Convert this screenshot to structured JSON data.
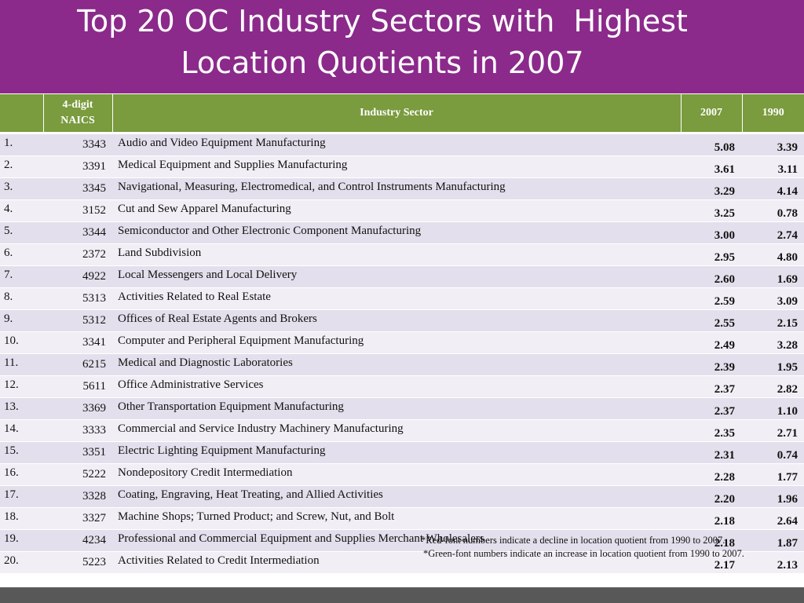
{
  "title": {
    "line1": "Top 20 OC Industry Sectors with  Highest",
    "line2": "Location Quotients in 2007"
  },
  "table": {
    "headers": {
      "naics_line1": "4-digit",
      "naics_line2": "NAICS",
      "sector": "Industry Sector",
      "y2007": "2007",
      "y1990": "1990"
    },
    "colors": {
      "increase": "#6a9a2a",
      "decline": "#c00000",
      "header": "#7a9b3e",
      "title_band": "#8b2a8b"
    },
    "rows": [
      {
        "rank": "1.",
        "naics": "3343",
        "sector": "Audio and Video Equipment Manufacturing",
        "v2007": "5.08",
        "v1990": "3.39",
        "trend": "up"
      },
      {
        "rank": "2.",
        "naics": "3391",
        "sector": "Medical Equipment and Supplies Manufacturing",
        "v2007": "3.61",
        "v1990": "3.11",
        "trend": "up"
      },
      {
        "rank": "3.",
        "naics": "3345",
        "sector": "Navigational, Measuring, Electromedical, and Control Instruments Manufacturing",
        "v2007": "3.29",
        "v1990": "4.14",
        "trend": "down"
      },
      {
        "rank": "4.",
        "naics": "3152",
        "sector": "Cut and Sew Apparel Manufacturing",
        "v2007": "3.25",
        "v1990": "0.78",
        "trend": "up"
      },
      {
        "rank": "5.",
        "naics": "3344",
        "sector": "Semiconductor and Other Electronic Component Manufacturing",
        "v2007": "3.00",
        "v1990": "2.74",
        "trend": "up"
      },
      {
        "rank": "6.",
        "naics": "2372",
        "sector": "Land Subdivision",
        "v2007": "2.95",
        "v1990": "4.80",
        "trend": "down"
      },
      {
        "rank": "7.",
        "naics": "4922",
        "sector": "Local Messengers and Local Delivery",
        "v2007": "2.60",
        "v1990": "1.69",
        "trend": "up"
      },
      {
        "rank": "8.",
        "naics": "5313",
        "sector": "Activities Related to Real Estate",
        "v2007": "2.59",
        "v1990": "3.09",
        "trend": "down"
      },
      {
        "rank": "9.",
        "naics": "5312",
        "sector": "Offices of Real Estate Agents and Brokers",
        "v2007": "2.55",
        "v1990": "2.15",
        "trend": "up"
      },
      {
        "rank": "10.",
        "naics": "3341",
        "sector": "Computer and Peripheral Equipment Manufacturing",
        "v2007": "2.49",
        "v1990": "3.28",
        "trend": "down"
      },
      {
        "rank": "11.",
        "naics": "6215",
        "sector": "Medical and Diagnostic Laboratories",
        "v2007": "2.39",
        "v1990": "1.95",
        "trend": "up"
      },
      {
        "rank": "12.",
        "naics": "5611",
        "sector": "Office Administrative Services",
        "v2007": "2.37",
        "v1990": "2.82",
        "trend": "down"
      },
      {
        "rank": "13.",
        "naics": "3369",
        "sector": "Other Transportation Equipment Manufacturing",
        "v2007": "2.37",
        "v1990": "1.10",
        "trend": "up"
      },
      {
        "rank": "14.",
        "naics": "3333",
        "sector": "Commercial and Service Industry Machinery Manufacturing",
        "v2007": "2.35",
        "v1990": "2.71",
        "trend": "down"
      },
      {
        "rank": "15.",
        "naics": "3351",
        "sector": "Electric Lighting Equipment Manufacturing",
        "v2007": "2.31",
        "v1990": "0.74",
        "trend": "up"
      },
      {
        "rank": "16.",
        "naics": "5222",
        "sector": "Nondepository Credit Intermediation",
        "v2007": "2.28",
        "v1990": "1.77",
        "trend": "up"
      },
      {
        "rank": "17.",
        "naics": "3328",
        "sector": "Coating, Engraving, Heat Treating, and Allied Activities",
        "v2007": "2.20",
        "v1990": "1.96",
        "trend": "up"
      },
      {
        "rank": "18.",
        "naics": "3327",
        "sector": "Machine Shops; Turned Product; and Screw, Nut, and Bolt",
        "v2007": "2.18",
        "v1990": "2.64",
        "trend": "down"
      },
      {
        "rank": "19.",
        "naics": "4234",
        "sector": "Professional and Commercial Equipment and Supplies Merchant Wholesalers",
        "v2007": "2.18",
        "v1990": "1.87",
        "trend": "up"
      },
      {
        "rank": "20.",
        "naics": "5223",
        "sector": "Activities Related to Credit Intermediation",
        "v2007": "2.17",
        "v1990": "2.13",
        "trend": "up"
      }
    ]
  },
  "footnotes": {
    "red": "*Red-font numbers indicate a decline in location quotient from 1990 to 2007.",
    "green": "*Green-font numbers indicate an increase in location quotient from 1990 to 2007."
  }
}
